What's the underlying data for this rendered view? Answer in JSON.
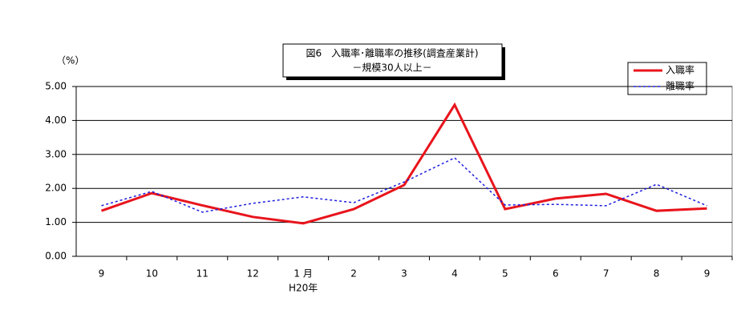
{
  "chart_data": {
    "type": "line",
    "title": "図6　入職率･離職率の推移(調査産業計)",
    "subtitle": "－規模30人以上－",
    "y_label": "（%）",
    "annotation": "H20年",
    "categories": [
      "9",
      "10",
      "11",
      "12",
      "1 月",
      "2",
      "3",
      "4",
      "5",
      "6",
      "7",
      "8",
      "9"
    ],
    "series": [
      {
        "name": "入職率",
        "color": "#e8141c",
        "dash": "solid",
        "values": [
          1.34,
          1.86,
          1.5,
          1.16,
          0.97,
          1.39,
          2.1,
          4.46,
          1.39,
          1.7,
          1.84,
          1.34,
          1.41
        ]
      },
      {
        "name": "離職率",
        "color": "#1c1ce0",
        "dash": "dotted",
        "values": [
          1.49,
          1.91,
          1.3,
          1.56,
          1.75,
          1.58,
          2.19,
          2.9,
          1.51,
          1.53,
          1.49,
          2.12,
          1.49
        ]
      }
    ],
    "ylim": [
      0,
      5
    ],
    "yticks": [
      {
        "value": 0,
        "label": "0.00"
      },
      {
        "value": 1,
        "label": "1.00"
      },
      {
        "value": 2,
        "label": "2.00"
      },
      {
        "value": 3,
        "label": "3.00"
      },
      {
        "value": 4,
        "label": "4.00"
      },
      {
        "value": 5,
        "label": "5.00"
      }
    ],
    "grid": true,
    "legend": "top-right"
  }
}
